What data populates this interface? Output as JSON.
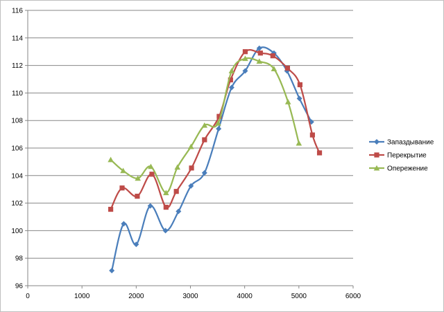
{
  "chart_data": {
    "type": "scatter",
    "title": "",
    "xlabel": "",
    "ylabel": "",
    "xlim": [
      0,
      6000
    ],
    "ylim": [
      96,
      116
    ],
    "x_ticks": [
      0,
      1000,
      2000,
      3000,
      4000,
      5000,
      6000
    ],
    "y_ticks": [
      96,
      98,
      100,
      102,
      104,
      106,
      108,
      110,
      112,
      114,
      116
    ],
    "grid": "horizontal",
    "smooth_lines": true,
    "legend_position": "right",
    "series": [
      {
        "name": "Запаздывание",
        "color": "#4a7ebb",
        "marker": "diamond",
        "points": [
          [
            1550,
            97.1
          ],
          [
            1770,
            100.5
          ],
          [
            2000,
            99.0
          ],
          [
            2260,
            101.8
          ],
          [
            2540,
            100.0
          ],
          [
            2780,
            101.4
          ],
          [
            3010,
            103.25
          ],
          [
            3260,
            104.2
          ],
          [
            3520,
            107.4
          ],
          [
            3760,
            110.4
          ],
          [
            4010,
            111.6
          ],
          [
            4270,
            113.25
          ],
          [
            4540,
            112.9
          ],
          [
            4780,
            111.6
          ],
          [
            5010,
            109.6
          ],
          [
            5230,
            107.9
          ]
        ]
      },
      {
        "name": "Перекрытие",
        "color": "#be4b48",
        "marker": "square",
        "points": [
          [
            1530,
            101.55
          ],
          [
            1740,
            103.1
          ],
          [
            2020,
            102.5
          ],
          [
            2290,
            104.1
          ],
          [
            2550,
            101.7
          ],
          [
            2740,
            102.85
          ],
          [
            3020,
            104.55
          ],
          [
            3260,
            106.6
          ],
          [
            3530,
            108.3
          ],
          [
            3740,
            110.95
          ],
          [
            4010,
            113.0
          ],
          [
            4290,
            112.9
          ],
          [
            4520,
            112.7
          ],
          [
            4790,
            111.8
          ],
          [
            5020,
            110.6
          ],
          [
            5250,
            106.95
          ],
          [
            5380,
            105.65
          ]
        ]
      },
      {
        "name": "Опережение",
        "color": "#98b954",
        "marker": "triangle",
        "points": [
          [
            1530,
            105.15
          ],
          [
            1760,
            104.35
          ],
          [
            2030,
            103.8
          ],
          [
            2270,
            104.65
          ],
          [
            2550,
            102.75
          ],
          [
            2760,
            104.6
          ],
          [
            3010,
            106.1
          ],
          [
            3260,
            107.65
          ],
          [
            3510,
            107.8
          ],
          [
            3760,
            111.6
          ],
          [
            4010,
            112.5
          ],
          [
            4270,
            112.3
          ],
          [
            4540,
            111.75
          ],
          [
            4800,
            109.35
          ],
          [
            5000,
            106.35
          ]
        ]
      }
    ]
  }
}
